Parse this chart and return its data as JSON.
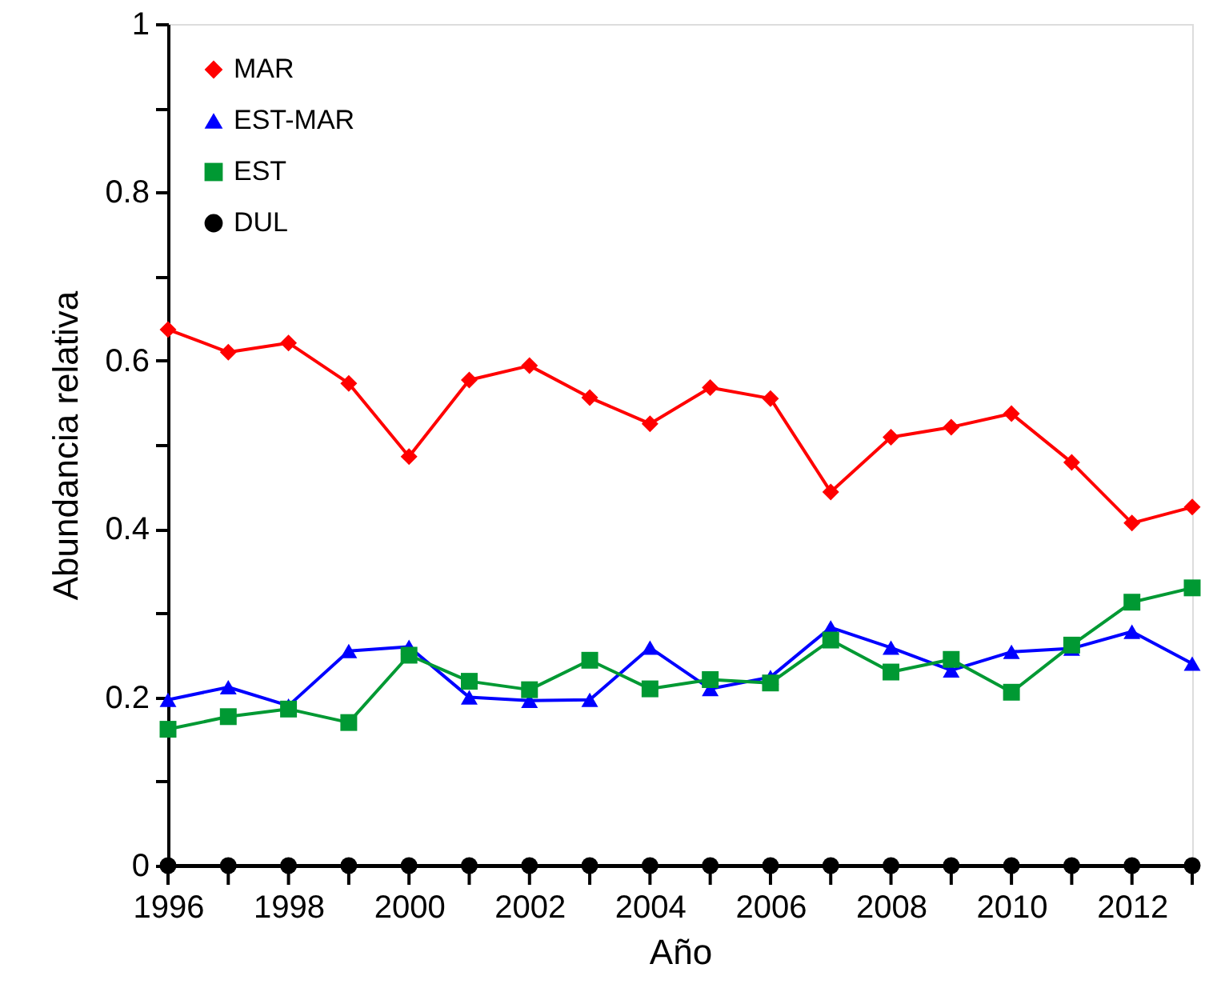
{
  "chart_data": {
    "type": "line",
    "xlabel": "Año",
    "ylabel": "Abundancia relativa",
    "x": [
      1996,
      1997,
      1998,
      1999,
      2000,
      2001,
      2002,
      2003,
      2004,
      2005,
      2006,
      2007,
      2008,
      2009,
      2010,
      2011,
      2012,
      2013
    ],
    "series": [
      {
        "name": "MAR",
        "color": "#ff0000",
        "marker": "diamond",
        "values": [
          0.637,
          0.61,
          0.621,
          0.573,
          0.486,
          0.577,
          0.594,
          0.556,
          0.525,
          0.568,
          0.555,
          0.444,
          0.509,
          0.521,
          0.537,
          0.479,
          0.407,
          0.426
        ]
      },
      {
        "name": "EST-MAR",
        "color": "#0000ff",
        "marker": "triangle",
        "values": [
          0.197,
          0.212,
          0.19,
          0.255,
          0.26,
          0.2,
          0.196,
          0.197,
          0.259,
          0.21,
          0.224,
          0.283,
          0.259,
          0.232,
          0.254,
          0.258,
          0.278,
          0.24
        ]
      },
      {
        "name": "EST",
        "color": "#009933",
        "marker": "square",
        "values": [
          0.162,
          0.177,
          0.186,
          0.17,
          0.25,
          0.219,
          0.209,
          0.244,
          0.21,
          0.221,
          0.217,
          0.268,
          0.23,
          0.245,
          0.206,
          0.262,
          0.313,
          0.33
        ]
      },
      {
        "name": "DUL",
        "color": "#000000",
        "marker": "circle",
        "values": [
          0,
          0,
          0,
          0,
          0,
          0,
          0,
          0,
          0,
          0,
          0,
          0,
          0,
          0,
          0,
          0,
          0,
          0
        ]
      }
    ],
    "xlim": [
      1996,
      2013
    ],
    "xticks": [
      1996,
      {
        "value": 1997,
        "label": null
      },
      1998,
      {
        "value": 1999,
        "label": null
      },
      2000,
      {
        "value": 2001,
        "label": null
      },
      2002,
      {
        "value": 2003,
        "label": null
      },
      2004,
      {
        "value": 2005,
        "label": null
      },
      2006,
      {
        "value": 2007,
        "label": null
      },
      2008,
      {
        "value": 2009,
        "label": null
      },
      2010,
      {
        "value": 2011,
        "label": null
      },
      2012,
      {
        "value": 2013,
        "label": null
      }
    ],
    "ylim": [
      0,
      1
    ],
    "yticks": [
      0,
      {
        "value": 0.1,
        "label": null
      },
      0.2,
      {
        "value": 0.3,
        "label": null
      },
      0.4,
      {
        "value": 0.5,
        "label": null
      },
      0.6,
      {
        "value": 0.7,
        "label": null
      },
      0.8,
      {
        "value": 0.9,
        "label": null
      },
      1
    ],
    "grid": false,
    "legend": "top left",
    "line_style": "solid"
  }
}
